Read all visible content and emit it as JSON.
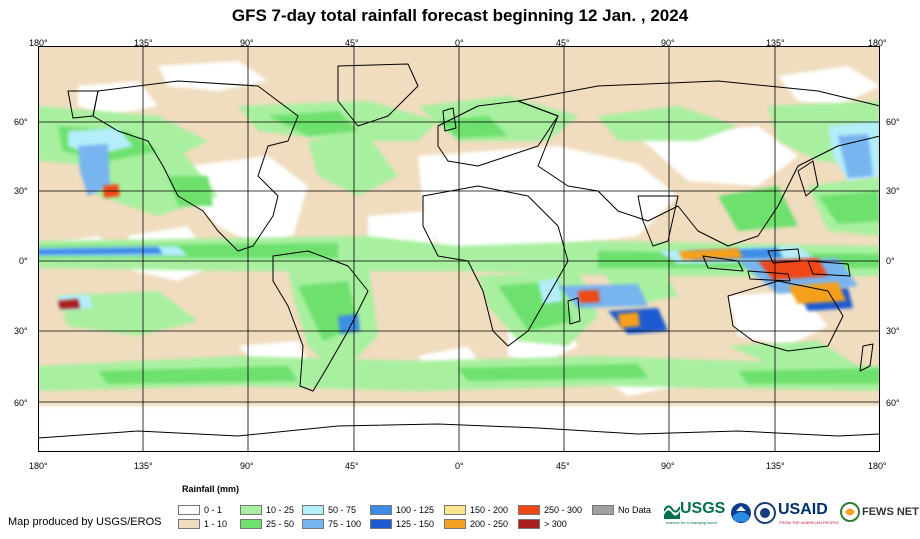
{
  "title": "GFS 7-day total rainfall forecast beginning 12 Jan. , 2024",
  "axes": {
    "top_longitudes": [
      "180°",
      "135°",
      "90°",
      "45°",
      "0°",
      "45°",
      "90°",
      "135°",
      "180°"
    ],
    "bottom_longitudes": [
      "180°",
      "135°",
      "90°",
      "45°",
      "0°",
      "45°",
      "90°",
      "135°",
      "180°"
    ],
    "left_latitudes": [
      "60°",
      "30°",
      "0°",
      "30°",
      "60°"
    ],
    "right_latitudes": [
      "60°",
      "30°",
      "0°",
      "30°",
      "60°"
    ]
  },
  "legend": {
    "title": "Rainfall (mm)",
    "items": [
      {
        "label": "0 - 1",
        "color": "#ffffff"
      },
      {
        "label": "1 - 10",
        "color": "#f0dcbe"
      },
      {
        "label": "10 - 25",
        "color": "#a8f0a0"
      },
      {
        "label": "25 - 50",
        "color": "#6ee06e"
      },
      {
        "label": "50 - 75",
        "color": "#b4eefa"
      },
      {
        "label": "75 - 100",
        "color": "#78b4f0"
      },
      {
        "label": "100 - 125",
        "color": "#3c8ce6"
      },
      {
        "label": "125 - 150",
        "color": "#1e5ad2"
      },
      {
        "label": "150 - 200",
        "color": "#fae68c"
      },
      {
        "label": "200 - 250",
        "color": "#f5a01e"
      },
      {
        "label": "250 - 300",
        "color": "#f04614"
      },
      {
        "label": "> 300",
        "color": "#aa1e1e"
      },
      {
        "label": "No Data",
        "color": "#a0a0a0"
      }
    ]
  },
  "credit": "Map produced by USGS/EROS",
  "logos": {
    "usgs": "USGS",
    "usgs_tagline": "science for a changing world",
    "usaid": "USAID",
    "usaid_tagline": "FROM THE AMERICAN PEOPLE",
    "fewsnet": "FEWS NET"
  }
}
